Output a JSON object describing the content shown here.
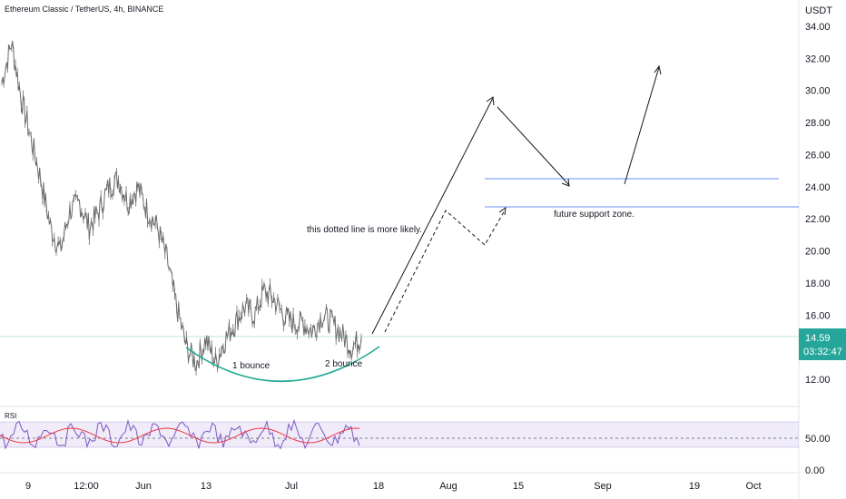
{
  "header": {
    "symbol": "Ethereum Classic / TetherUS, 4h, BINANCE"
  },
  "price_axis": {
    "currency": "USDT",
    "ticks": [
      "34.00",
      "32.00",
      "30.00",
      "28.00",
      "26.00",
      "24.00",
      "22.00",
      "20.00",
      "18.00",
      "16.00",
      "12.00"
    ],
    "tick_values": [
      34,
      32,
      30,
      28,
      26,
      24,
      22,
      20,
      18,
      16,
      12
    ],
    "last_price": "14.59",
    "countdown": "03:32:47",
    "last_price_value": 14.59,
    "last_price_color": "#26a69a"
  },
  "rsi": {
    "label": "RSI",
    "ticks": [
      "50.00",
      "0.00"
    ],
    "band_color": "#7e57c2",
    "line_color": "#7e57c2",
    "ma_color": "#f23645"
  },
  "time_axis": {
    "labels": [
      "9",
      "12:00",
      "Jun",
      "13",
      "Jul",
      "18",
      "Aug",
      "15",
      "Sep",
      "19",
      "Oct"
    ]
  },
  "annotations": {
    "dotted_note": "this dotted line is more likely.",
    "support_note": "future support zone.",
    "bounce1": "1 bounce",
    "bounce2": "2 bounce"
  },
  "colors": {
    "support_line": "#2962ff",
    "arc": "#22ab94",
    "candles": "#6b6b6b"
  },
  "chart_data": {
    "type": "line",
    "title": "Ethereum Classic / TetherUS, 4h, BINANCE",
    "ylabel": "USDT",
    "ylim": [
      11,
      34.5
    ],
    "series": [
      {
        "values": [
          30.5,
          33.0,
          29.5,
          27.0,
          24.5,
          21.5,
          20.0,
          22.5,
          23.0,
          21.5,
          22.5,
          24.0,
          24.5,
          23.0,
          24.0,
          22.5,
          21.5,
          19.5,
          16.5,
          14.0,
          13.0,
          14.5,
          13.0,
          14.5,
          15.5,
          16.5,
          16.0,
          17.5,
          17.0,
          16.0,
          15.5,
          15.5,
          15.0,
          16.0,
          15.5,
          14.8,
          14.0,
          14.59
        ]
      }
    ],
    "support_zone": [
      22.5,
      24.5
    ],
    "last_price": 14.59
  }
}
